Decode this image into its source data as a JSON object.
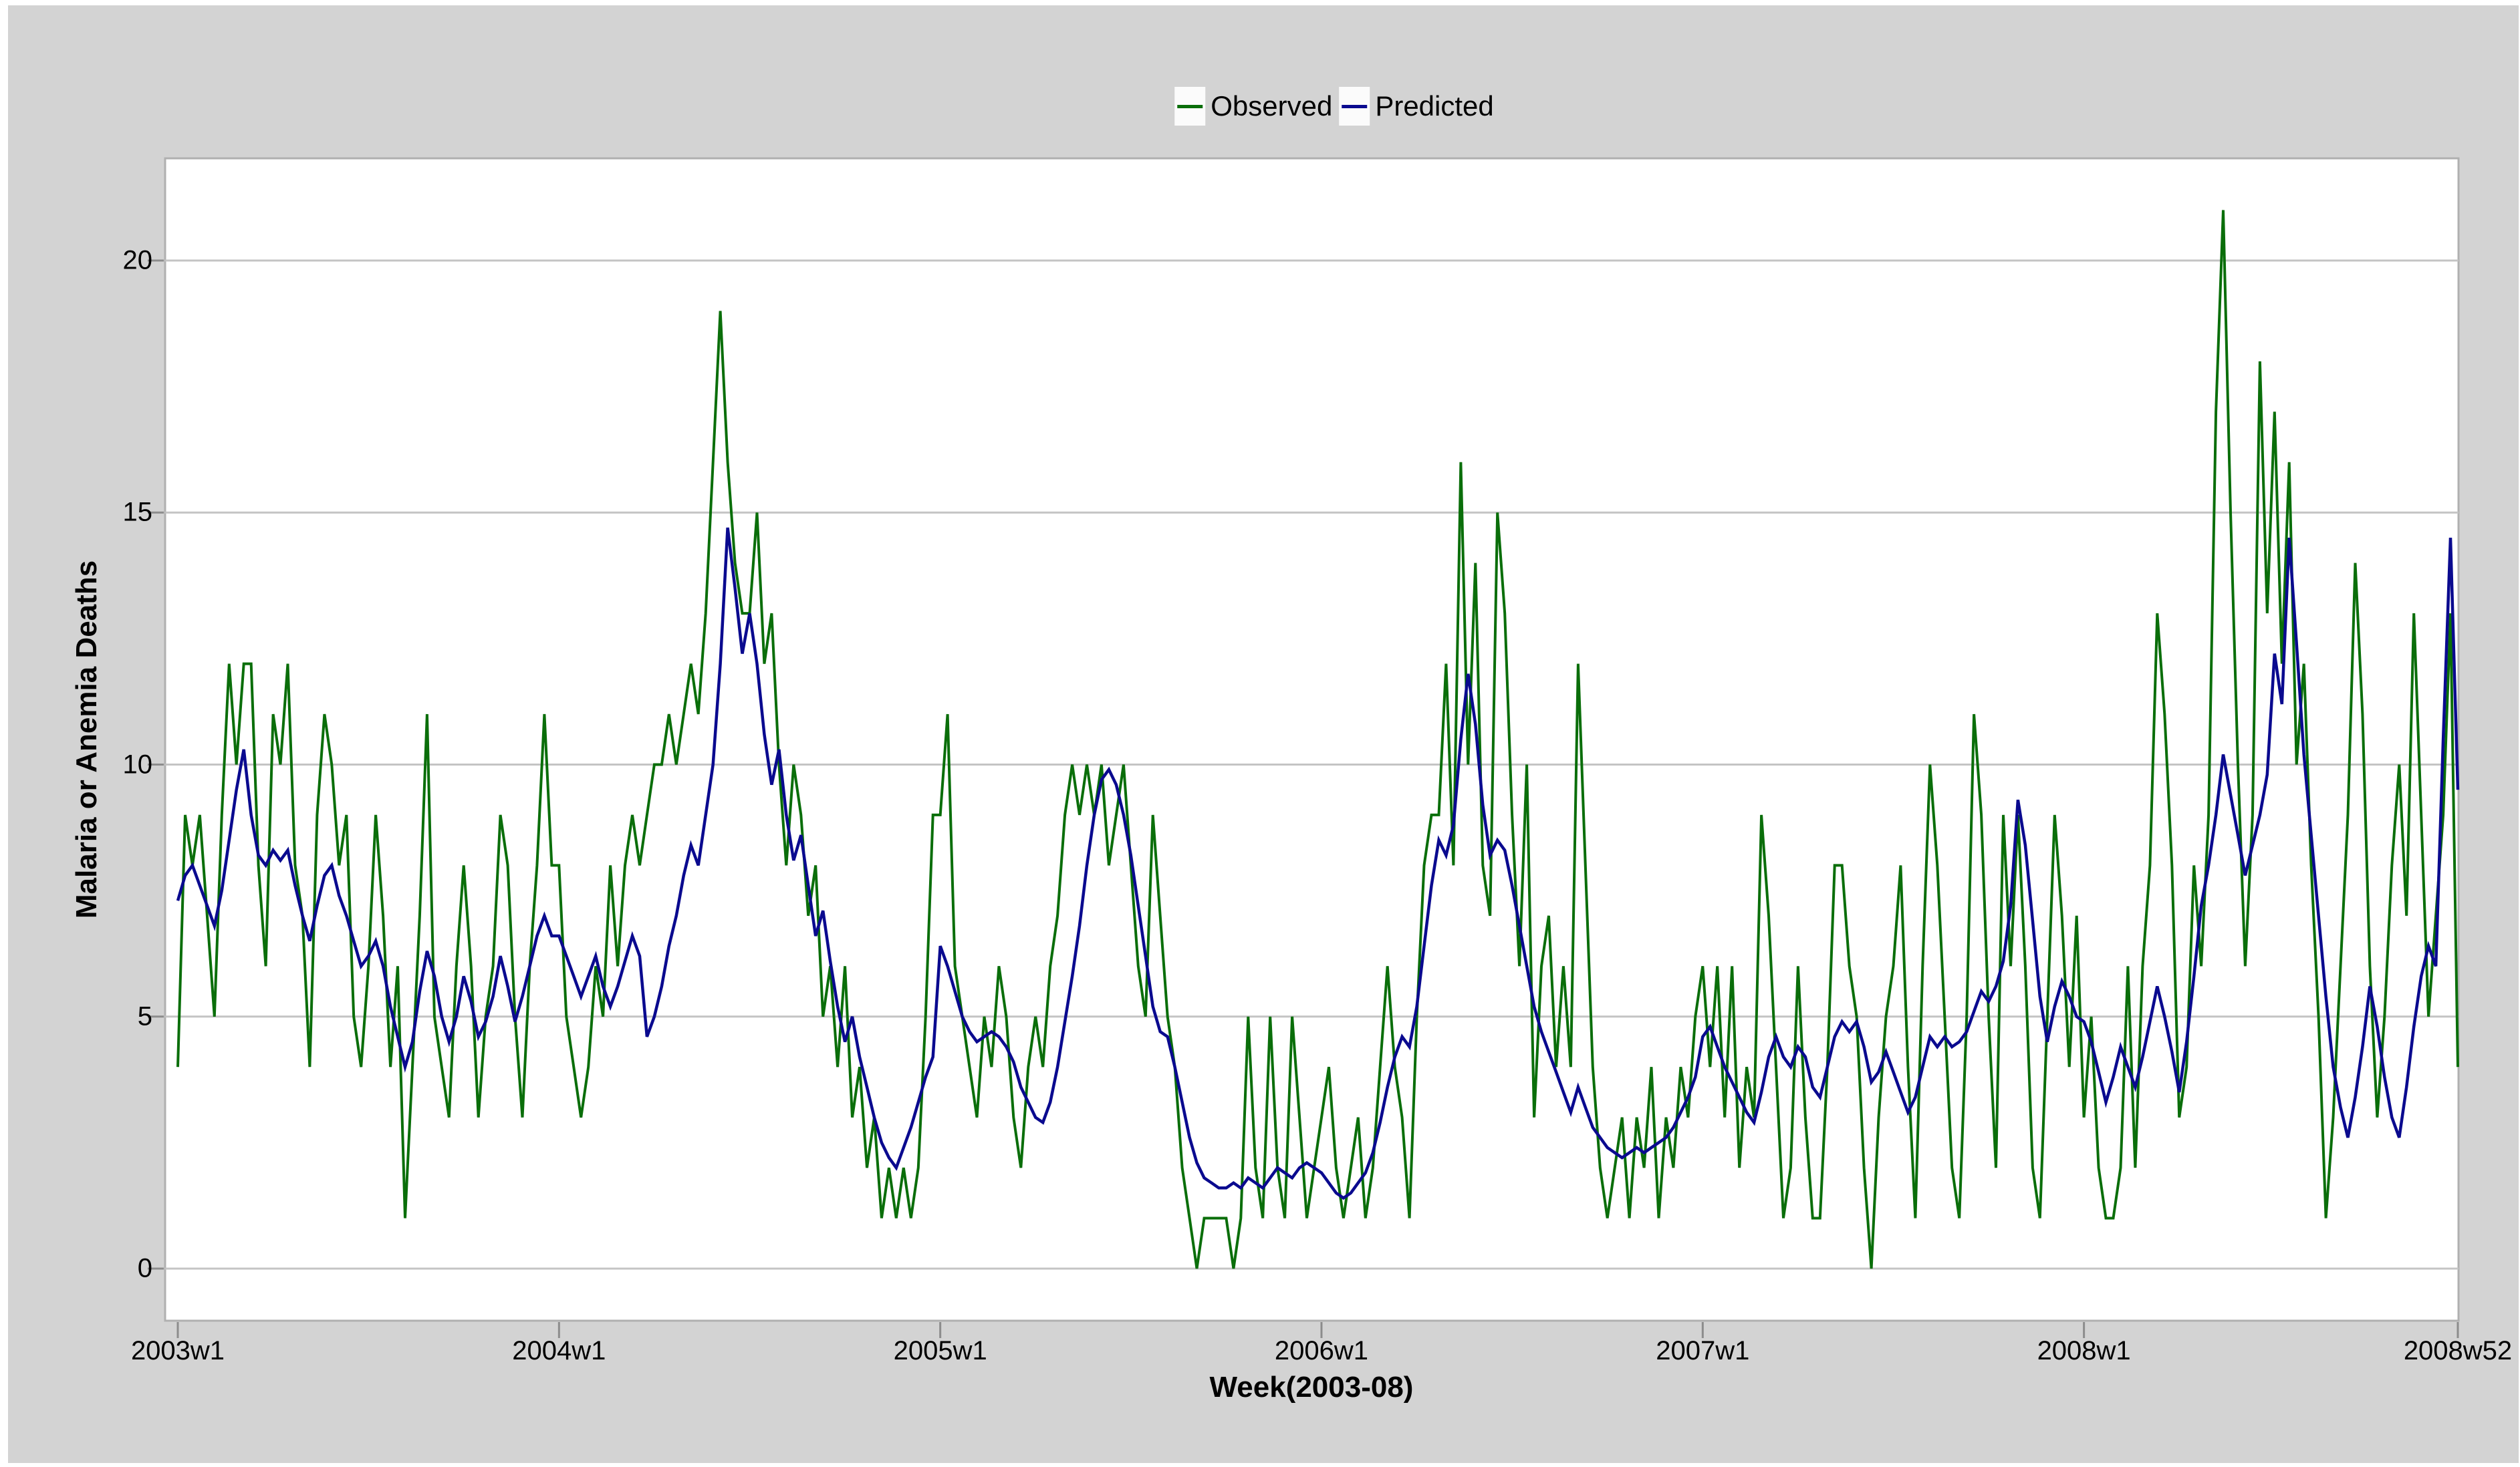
{
  "chart": {
    "legend": [
      {
        "label": "Observed"
      },
      {
        "label": "Predicted"
      }
    ],
    "y_axis_title": "Malaria or Anemia Deaths",
    "x_axis_title": "Week(2003-08)",
    "y_tick_labels": [
      "0",
      "5",
      "10",
      "15",
      "20"
    ],
    "x_tick_labels": [
      "2003w1",
      "2004w1",
      "2005w1",
      "2006w1",
      "2007w1",
      "2008w1",
      "2008w52"
    ]
  },
  "chart_data": {
    "type": "line",
    "title": "",
    "xlabel": "Week(2003-08)",
    "ylabel": "Malaria or Anemia Deaths",
    "x_unit": "weekly observations from 2003w1 through 2008w52 (312 weeks)",
    "ylim": [
      0,
      20
    ],
    "y_ticks": [
      0,
      5,
      10,
      15,
      20
    ],
    "x_tick_labels": [
      "2003w1",
      "2004w1",
      "2005w1",
      "2006w1",
      "2007w1",
      "2008w1",
      "2008w52"
    ],
    "x_tick_indices": [
      0,
      52,
      104,
      156,
      208,
      260,
      311
    ],
    "grid": "horizontal gridlines at y ticks",
    "legend_position": "top-center",
    "colors": {
      "observed": "#0a6e0a",
      "predicted": "#0a0a8f",
      "plot_bg": "#ffffff",
      "outer_bg": "#d3d3d3",
      "gridline": "#c4c4c4",
      "plot_border": "#b0b0b0",
      "tick_mark": "#8c8c8c"
    },
    "series": [
      {
        "name": "Observed",
        "color": "#0a6e0a",
        "values": [
          4,
          9,
          8,
          9,
          7,
          5,
          9,
          12,
          10,
          12,
          12,
          8,
          6,
          11,
          10,
          12,
          8,
          7,
          4,
          9,
          11,
          10,
          8,
          9,
          5,
          4,
          6,
          9,
          7,
          4,
          6,
          1,
          4,
          7,
          11,
          5,
          4,
          3,
          6,
          8,
          6,
          3,
          5,
          6,
          9,
          8,
          5,
          3,
          6,
          8,
          11,
          8,
          8,
          5,
          4,
          3,
          4,
          6,
          5,
          8,
          6,
          8,
          9,
          8,
          9,
          10,
          10,
          11,
          10,
          11,
          12,
          11,
          13,
          16,
          19,
          16,
          14,
          13,
          13,
          15,
          12,
          13,
          10,
          8,
          10,
          9,
          7,
          8,
          5,
          6,
          4,
          6,
          3,
          4,
          2,
          3,
          1,
          2,
          1,
          2,
          1,
          2,
          5,
          9,
          9,
          11,
          6,
          5,
          4,
          3,
          5,
          4,
          6,
          5,
          3,
          2,
          4,
          5,
          4,
          6,
          7,
          9,
          10,
          9,
          10,
          9,
          10,
          8,
          9,
          10,
          8,
          6,
          5,
          9,
          7,
          5,
          4,
          2,
          1,
          0,
          1,
          1,
          1,
          1,
          0,
          1,
          5,
          2,
          1,
          5,
          2,
          1,
          5,
          3,
          1,
          2,
          3,
          4,
          2,
          1,
          2,
          3,
          1,
          2,
          4,
          6,
          4,
          3,
          1,
          5,
          8,
          9,
          9,
          12,
          8,
          16,
          10,
          14,
          8,
          7,
          15,
          13,
          9,
          6,
          10,
          3,
          6,
          7,
          4,
          6,
          4,
          12,
          8,
          4,
          2,
          1,
          2,
          3,
          1,
          3,
          2,
          4,
          1,
          3,
          2,
          4,
          3,
          5,
          6,
          4,
          6,
          3,
          6,
          2,
          4,
          3,
          9,
          7,
          4,
          1,
          2,
          6,
          3,
          1,
          1,
          4,
          8,
          8,
          6,
          5,
          2,
          0,
          3,
          5,
          6,
          8,
          4,
          1,
          6,
          10,
          8,
          5,
          2,
          1,
          5,
          11,
          9,
          5,
          2,
          9,
          6,
          9,
          6,
          2,
          1,
          5,
          9,
          7,
          4,
          7,
          3,
          5,
          2,
          1,
          1,
          2,
          6,
          2,
          6,
          8,
          13,
          11,
          8,
          3,
          4,
          8,
          6,
          9,
          17,
          21,
          15,
          10,
          6,
          9,
          18,
          13,
          17,
          12,
          16,
          10,
          12,
          8,
          5,
          1,
          3,
          6,
          9,
          14,
          11,
          6,
          3,
          5,
          8,
          10,
          7,
          13,
          9,
          5,
          7,
          9,
          13,
          4
        ]
      },
      {
        "name": "Predicted",
        "color": "#0a0a8f",
        "values": [
          7.3,
          7.8,
          8.0,
          7.6,
          7.2,
          6.8,
          7.5,
          8.5,
          9.5,
          10.3,
          9.0,
          8.2,
          8.0,
          8.3,
          8.1,
          8.3,
          7.6,
          7.0,
          6.5,
          7.2,
          7.8,
          8.0,
          7.4,
          7.0,
          6.5,
          6.0,
          6.2,
          6.5,
          6.0,
          5.2,
          4.6,
          4.0,
          4.5,
          5.5,
          6.3,
          5.8,
          5.0,
          4.5,
          5.0,
          5.8,
          5.3,
          4.6,
          4.9,
          5.4,
          6.2,
          5.6,
          4.9,
          5.4,
          6.0,
          6.6,
          7.0,
          6.6,
          6.6,
          6.2,
          5.8,
          5.4,
          5.8,
          6.2,
          5.6,
          5.2,
          5.6,
          6.1,
          6.6,
          6.2,
          4.6,
          5.0,
          5.6,
          6.4,
          7.0,
          7.8,
          8.4,
          8.0,
          9.0,
          10.0,
          12.0,
          14.7,
          13.5,
          12.2,
          13.0,
          12.0,
          10.6,
          9.6,
          10.3,
          9.0,
          8.1,
          8.6,
          7.6,
          6.6,
          7.1,
          6.1,
          5.2,
          4.5,
          5.0,
          4.2,
          3.6,
          3.0,
          2.5,
          2.2,
          2.0,
          2.4,
          2.8,
          3.3,
          3.8,
          4.2,
          6.4,
          6.0,
          5.5,
          5.0,
          4.7,
          4.5,
          4.6,
          4.7,
          4.6,
          4.4,
          4.1,
          3.6,
          3.3,
          3.0,
          2.9,
          3.3,
          4.0,
          4.9,
          5.8,
          6.8,
          8.0,
          9.0,
          9.7,
          9.9,
          9.6,
          9.0,
          8.2,
          7.2,
          6.2,
          5.2,
          4.7,
          4.6,
          4.0,
          3.3,
          2.6,
          2.1,
          1.8,
          1.7,
          1.6,
          1.6,
          1.7,
          1.6,
          1.8,
          1.7,
          1.6,
          1.8,
          2.0,
          1.9,
          1.8,
          2.0,
          2.1,
          2.0,
          1.9,
          1.7,
          1.5,
          1.4,
          1.5,
          1.7,
          1.9,
          2.3,
          2.9,
          3.6,
          4.2,
          4.6,
          4.4,
          5.2,
          6.4,
          7.6,
          8.5,
          8.2,
          8.8,
          10.5,
          11.8,
          10.8,
          9.2,
          8.2,
          8.5,
          8.3,
          7.6,
          6.8,
          6.0,
          5.2,
          4.7,
          4.3,
          3.9,
          3.5,
          3.1,
          3.6,
          3.2,
          2.8,
          2.6,
          2.4,
          2.3,
          2.2,
          2.3,
          2.4,
          2.3,
          2.4,
          2.5,
          2.6,
          2.8,
          3.1,
          3.4,
          3.8,
          4.6,
          4.8,
          4.4,
          4.0,
          3.7,
          3.4,
          3.1,
          2.9,
          3.5,
          4.2,
          4.6,
          4.2,
          4.0,
          4.4,
          4.2,
          3.6,
          3.4,
          4.0,
          4.6,
          4.9,
          4.7,
          4.9,
          4.4,
          3.7,
          3.9,
          4.3,
          3.9,
          3.5,
          3.1,
          3.4,
          4.0,
          4.6,
          4.4,
          4.6,
          4.4,
          4.5,
          4.7,
          5.1,
          5.5,
          5.3,
          5.6,
          6.1,
          7.2,
          9.3,
          8.4,
          6.9,
          5.4,
          4.5,
          5.2,
          5.7,
          5.4,
          5.0,
          4.9,
          4.5,
          3.9,
          3.3,
          3.8,
          4.4,
          4.0,
          3.6,
          4.2,
          4.9,
          5.6,
          5.0,
          4.3,
          3.5,
          4.5,
          5.8,
          7.2,
          8.0,
          9.0,
          10.2,
          9.4,
          8.6,
          7.8,
          8.4,
          9.0,
          9.8,
          12.2,
          11.2,
          14.5,
          12.4,
          10.2,
          8.6,
          7.0,
          5.4,
          4.0,
          3.2,
          2.6,
          3.4,
          4.4,
          5.6,
          4.8,
          3.8,
          3.0,
          2.6,
          3.6,
          4.8,
          5.8,
          6.4,
          6.0,
          10.5,
          14.5,
          9.5
        ]
      }
    ]
  }
}
